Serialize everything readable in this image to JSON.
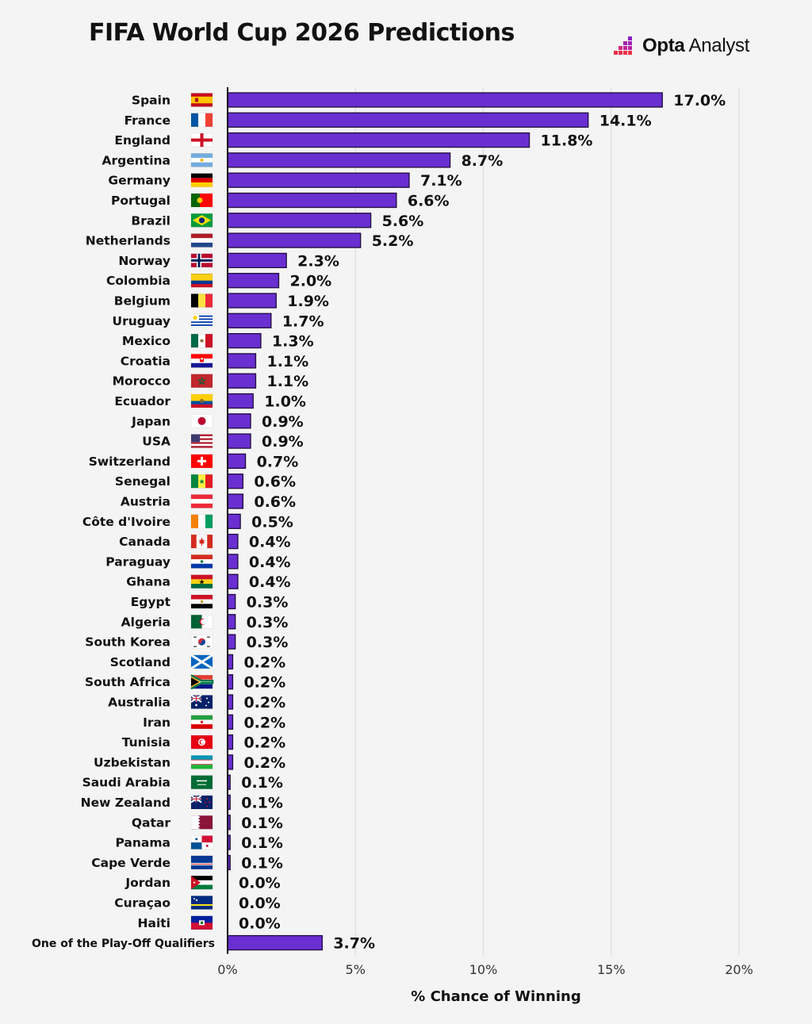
{
  "header": {
    "title": "FIFA World Cup 2026 Predictions",
    "brand_bold": "Opta",
    "brand_light": "Analyst"
  },
  "colors": {
    "bar_fill": "#6a2fd1",
    "bar_stroke": "#1d0b3d",
    "grid": "#dcdcdc",
    "axis": "#111111",
    "background": "#f4f4f4"
  },
  "chart_data": {
    "type": "bar",
    "orientation": "horizontal",
    "title": "FIFA World Cup 2026 Predictions",
    "xlabel": "% Chance of Winning",
    "ylabel": "",
    "xlim": [
      0,
      20
    ],
    "xticks": [
      0,
      5,
      10,
      15,
      20
    ],
    "xtick_labels": [
      "0%",
      "5%",
      "10%",
      "15%",
      "20%"
    ],
    "grid": true,
    "categories": [
      "Spain",
      "France",
      "England",
      "Argentina",
      "Germany",
      "Portugal",
      "Brazil",
      "Netherlands",
      "Norway",
      "Colombia",
      "Belgium",
      "Uruguay",
      "Mexico",
      "Croatia",
      "Morocco",
      "Ecuador",
      "Japan",
      "USA",
      "Switzerland",
      "Senegal",
      "Austria",
      "Côte d'Ivoire",
      "Canada",
      "Paraguay",
      "Ghana",
      "Egypt",
      "Algeria",
      "South Korea",
      "Scotland",
      "South Africa",
      "Australia",
      "Iran",
      "Tunisia",
      "Uzbekistan",
      "Saudi Arabia",
      "New Zealand",
      "Qatar",
      "Panama",
      "Cape Verde",
      "Jordan",
      "Curaçao",
      "Haiti",
      "One of the Play-Off Qualifiers"
    ],
    "values": [
      17.0,
      14.1,
      11.8,
      8.7,
      7.1,
      6.6,
      5.6,
      5.2,
      2.3,
      2.0,
      1.9,
      1.7,
      1.3,
      1.1,
      1.1,
      1.0,
      0.9,
      0.9,
      0.7,
      0.6,
      0.6,
      0.5,
      0.4,
      0.4,
      0.4,
      0.3,
      0.3,
      0.3,
      0.2,
      0.2,
      0.2,
      0.2,
      0.2,
      0.2,
      0.1,
      0.1,
      0.1,
      0.1,
      0.1,
      0.0,
      0.0,
      0.0,
      3.7
    ],
    "value_labels": [
      "17.0%",
      "14.1%",
      "11.8%",
      "8.7%",
      "7.1%",
      "6.6%",
      "5.6%",
      "5.2%",
      "2.3%",
      "2.0%",
      "1.9%",
      "1.7%",
      "1.3%",
      "1.1%",
      "1.1%",
      "1.0%",
      "0.9%",
      "0.9%",
      "0.7%",
      "0.6%",
      "0.6%",
      "0.5%",
      "0.4%",
      "0.4%",
      "0.4%",
      "0.3%",
      "0.3%",
      "0.3%",
      "0.2%",
      "0.2%",
      "0.2%",
      "0.2%",
      "0.2%",
      "0.2%",
      "0.1%",
      "0.1%",
      "0.1%",
      "0.1%",
      "0.1%",
      "0.0%",
      "0.0%",
      "0.0%",
      "3.7%"
    ],
    "flags": [
      "spain-flag-icon",
      "france-flag-icon",
      "england-flag-icon",
      "argentina-flag-icon",
      "germany-flag-icon",
      "portugal-flag-icon",
      "brazil-flag-icon",
      "netherlands-flag-icon",
      "norway-flag-icon",
      "colombia-flag-icon",
      "belgium-flag-icon",
      "uruguay-flag-icon",
      "mexico-flag-icon",
      "croatia-flag-icon",
      "morocco-flag-icon",
      "ecuador-flag-icon",
      "japan-flag-icon",
      "usa-flag-icon",
      "switzerland-flag-icon",
      "senegal-flag-icon",
      "austria-flag-icon",
      "cote-divoire-flag-icon",
      "canada-flag-icon",
      "paraguay-flag-icon",
      "ghana-flag-icon",
      "egypt-flag-icon",
      "algeria-flag-icon",
      "south-korea-flag-icon",
      "scotland-flag-icon",
      "south-africa-flag-icon",
      "australia-flag-icon",
      "iran-flag-icon",
      "tunisia-flag-icon",
      "uzbekistan-flag-icon",
      "saudi-arabia-flag-icon",
      "new-zealand-flag-icon",
      "qatar-flag-icon",
      "panama-flag-icon",
      "cape-verde-flag-icon",
      "jordan-flag-icon",
      "curacao-flag-icon",
      "haiti-flag-icon",
      ""
    ]
  }
}
